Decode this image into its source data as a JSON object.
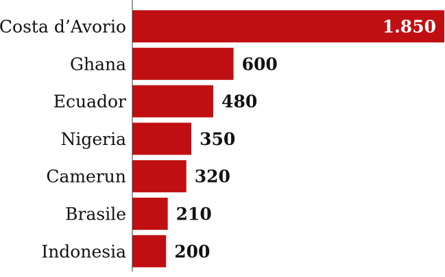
{
  "chart_data": {
    "type": "bar",
    "orientation": "horizontal",
    "categories": [
      "Costa d’Avorio",
      "Ghana",
      "Ecuador",
      "Nigeria",
      "Camerun",
      "Brasile",
      "Indonesia"
    ],
    "values": [
      1850,
      600,
      480,
      350,
      320,
      210,
      200
    ],
    "value_labels": [
      "1.850",
      "600",
      "480",
      "350",
      "320",
      "210",
      "200"
    ],
    "bar_color": "#c00f12",
    "label_color": "#111111",
    "inside_label_color": "#ffffff",
    "xlim": [
      0,
      1850
    ],
    "grid": false,
    "title": "",
    "xlabel": "",
    "ylabel": ""
  }
}
